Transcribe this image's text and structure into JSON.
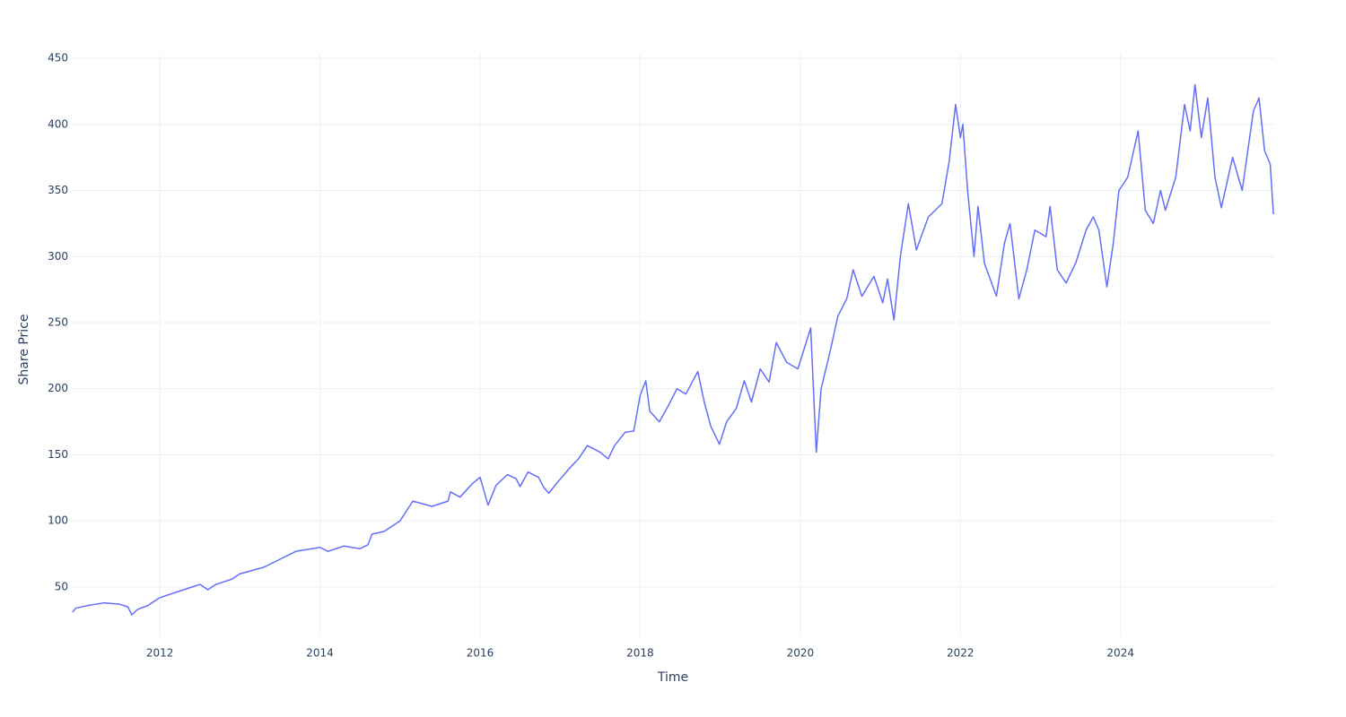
{
  "chart_data": {
    "type": "line",
    "x_label": "Time",
    "y_label": "Share Price",
    "color": "#636efa",
    "grid": true,
    "xlim": [
      2010.9,
      2025.92
    ],
    "ylim": [
      12.7,
      453.4
    ],
    "xticks": [
      2012,
      2014,
      2016,
      2018,
      2020,
      2022,
      2024
    ],
    "yticks": [
      50,
      100,
      150,
      200,
      250,
      300,
      350,
      400,
      450
    ],
    "x": [
      2010.91,
      2010.95,
      2011.1,
      2011.3,
      2011.5,
      2011.6,
      2011.65,
      2011.72,
      2011.85,
      2012.0,
      2012.2,
      2012.4,
      2012.5,
      2012.6,
      2012.7,
      2012.9,
      2013.0,
      2013.3,
      2013.5,
      2013.7,
      2013.9,
      2014.0,
      2014.1,
      2014.3,
      2014.5,
      2014.6,
      2014.65,
      2014.8,
      2015.0,
      2015.16,
      2015.4,
      2015.6,
      2015.63,
      2015.75,
      2015.9,
      2016.0,
      2016.1,
      2016.2,
      2016.34,
      2016.45,
      2016.5,
      2016.6,
      2016.73,
      2016.8,
      2016.86,
      2016.95,
      2017.12,
      2017.23,
      2017.34,
      2017.5,
      2017.6,
      2017.68,
      2017.81,
      2017.92,
      2018.0,
      2018.07,
      2018.12,
      2018.24,
      2018.35,
      2018.46,
      2018.57,
      2018.72,
      2018.8,
      2018.88,
      2018.99,
      2019.08,
      2019.2,
      2019.3,
      2019.39,
      2019.5,
      2019.61,
      2019.7,
      2019.83,
      2019.97,
      2020.13,
      2020.2,
      2020.26,
      2020.36,
      2020.47,
      2020.58,
      2020.66,
      2020.77,
      2020.92,
      2021.03,
      2021.09,
      2021.17,
      2021.25,
      2021.35,
      2021.45,
      2021.6,
      2021.77,
      2021.86,
      2021.94,
      2022.0,
      2022.03,
      2022.09,
      2022.17,
      2022.22,
      2022.3,
      2022.45,
      2022.55,
      2022.62,
      2022.73,
      2022.83,
      2022.93,
      2023.07,
      2023.12,
      2023.21,
      2023.32,
      2023.44,
      2023.57,
      2023.66,
      2023.73,
      2023.83,
      2023.91,
      2023.98,
      2024.09,
      2024.22,
      2024.31,
      2024.41,
      2024.5,
      2024.56,
      2024.69,
      2024.8,
      2024.87,
      2024.93,
      2025.01,
      2025.09,
      2025.18,
      2025.26,
      2025.4,
      2025.52,
      2025.66,
      2025.73,
      2025.8,
      2025.87,
      2025.91
    ],
    "values": [
      31,
      34,
      36,
      38,
      37,
      35,
      29,
      33,
      36,
      42,
      46,
      50,
      52,
      48,
      52,
      56,
      60,
      65,
      71,
      77,
      79,
      80,
      77,
      81,
      79,
      82,
      90,
      92,
      100,
      115,
      111,
      115,
      122,
      118,
      128,
      133,
      112,
      127,
      135,
      132,
      126,
      137,
      133,
      125,
      121,
      128,
      140,
      147,
      157,
      152,
      147,
      157,
      167,
      168,
      195,
      206,
      183,
      175,
      187,
      200,
      196,
      213,
      190,
      172,
      158,
      175,
      185,
      206,
      190,
      215,
      205,
      235,
      220,
      215,
      246,
      152,
      200,
      225,
      255,
      268,
      290,
      270,
      285,
      265,
      283,
      252,
      300,
      340,
      305,
      330,
      340,
      372,
      415,
      390,
      400,
      350,
      300,
      338,
      295,
      270,
      310,
      325,
      268,
      290,
      320,
      315,
      338,
      290,
      280,
      295,
      320,
      330,
      320,
      277,
      310,
      350,
      360,
      395,
      335,
      325,
      350,
      335,
      360,
      415,
      395,
      430,
      390,
      420,
      360,
      337,
      375,
      350,
      410,
      420,
      380,
      370,
      332
    ]
  }
}
